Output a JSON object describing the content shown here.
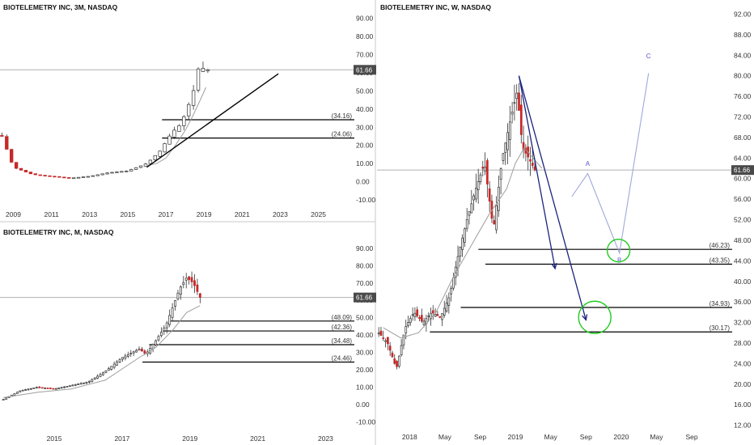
{
  "colors": {
    "up": "#ffffff",
    "down": "#c62828",
    "wick": "#333333",
    "ma": "#9e9e9e",
    "level": "#000000",
    "price_line": "#b0b0b0",
    "arrow": "#1a237e",
    "wave": "#9fa8da",
    "circle": "#22cc22",
    "price_tag": "#4a4a4a"
  },
  "chart_data": [
    {
      "type": "candlestick",
      "title": "BIOTELEMETRY INC, 3M, NASDAQ",
      "current_price": 61.66,
      "current_price_label": "61.66",
      "ylim": [
        -14,
        93
      ],
      "y_ticks": [
        "-10.00",
        "0.00",
        "10.00",
        "20.00",
        "30.00",
        "40.00",
        "50.00",
        "60.00",
        "70.00",
        "80.00",
        "90.00"
      ],
      "x_ticks": [
        {
          "label": "2009",
          "x": 2009
        },
        {
          "label": "2011",
          "x": 2011
        },
        {
          "label": "2013",
          "x": 2013
        },
        {
          "label": "2015",
          "x": 2015
        },
        {
          "label": "2017",
          "x": 2017
        },
        {
          "label": "2019",
          "x": 2019
        },
        {
          "label": "2021",
          "x": 2021
        },
        {
          "label": "2023",
          "x": 2023
        },
        {
          "label": "2025",
          "x": 2025
        }
      ],
      "xlim": [
        2008.3,
        2026.8
      ],
      "levels": [
        {
          "value": 34.16,
          "label": "(34.16)",
          "from": 2016.8
        },
        {
          "value": 24.06,
          "label": "(24.06)",
          "from": 2016.8
        }
      ],
      "trendline": [
        [
          2016.0,
          8
        ],
        [
          2022.9,
          59.5
        ]
      ],
      "ma": [
        [
          2016,
          9
        ],
        [
          2016.5,
          10
        ],
        [
          2017,
          13
        ],
        [
          2017.5,
          20
        ],
        [
          2018,
          28
        ],
        [
          2018.4,
          36
        ],
        [
          2018.8,
          45
        ],
        [
          2019.1,
          52
        ]
      ],
      "anchors": [
        [
          2008.4,
          25
        ],
        [
          2009,
          8
        ],
        [
          2010,
          4
        ],
        [
          2011,
          3
        ],
        [
          2012,
          2
        ],
        [
          2013,
          3
        ],
        [
          2014,
          5
        ],
        [
          2015,
          6
        ],
        [
          2016,
          10
        ],
        [
          2016.7,
          17
        ],
        [
          2017.3,
          27
        ],
        [
          2017.8,
          32
        ],
        [
          2018.4,
          48
        ],
        [
          2018.8,
          67
        ],
        [
          2019,
          61
        ],
        [
          2019.2,
          61.7
        ]
      ]
    },
    {
      "type": "candlestick",
      "title": "BIOTELEMETRY INC, M, NASDAQ",
      "current_price": 61.66,
      "current_price_label": "61.66",
      "ylim": [
        -14,
        96
      ],
      "y_ticks": [
        "-10.00",
        "0.00",
        "10.00",
        "20.00",
        "30.00",
        "40.00",
        "50.00",
        "60.00",
        "70.00",
        "80.00",
        "90.00"
      ],
      "x_ticks": [
        {
          "label": "2015",
          "x": 2015
        },
        {
          "label": "2017",
          "x": 2017
        },
        {
          "label": "2019",
          "x": 2019
        },
        {
          "label": "2021",
          "x": 2021
        },
        {
          "label": "2023",
          "x": 2023
        }
      ],
      "xlim": [
        2013.4,
        2023.8
      ],
      "levels": [
        {
          "value": 48.09,
          "label": "(48.09)",
          "from": 2018.4
        },
        {
          "value": 42.36,
          "label": "(42.36)",
          "from": 2018.2
        },
        {
          "value": 34.48,
          "label": "(34.48)",
          "from": 2017.8
        },
        {
          "value": 24.46,
          "label": "(24.46)",
          "from": 2017.6
        }
      ],
      "ma": [
        [
          2013.5,
          4
        ],
        [
          2014.5,
          7
        ],
        [
          2015.5,
          9
        ],
        [
          2016.5,
          14
        ],
        [
          2017.5,
          27
        ],
        [
          2018,
          33
        ],
        [
          2018.5,
          43
        ],
        [
          2018.9,
          53
        ],
        [
          2019.3,
          57
        ]
      ],
      "anchors": [
        [
          2013.5,
          3
        ],
        [
          2014,
          8
        ],
        [
          2014.5,
          10
        ],
        [
          2015,
          9
        ],
        [
          2015.5,
          11
        ],
        [
          2016,
          13
        ],
        [
          2016.5,
          19
        ],
        [
          2017,
          27
        ],
        [
          2017.5,
          32
        ],
        [
          2017.7,
          29
        ],
        [
          2018,
          37
        ],
        [
          2018.3,
          46
        ],
        [
          2018.7,
          67
        ],
        [
          2018.9,
          73
        ],
        [
          2019.1,
          70
        ],
        [
          2019.3,
          61.7
        ]
      ]
    },
    {
      "type": "candlestick",
      "title": "BIOTELEMETRY INC, W, NASDAQ",
      "current_price": 61.66,
      "current_price_label": "61.66",
      "ylim": [
        11,
        93.8
      ],
      "y_ticks": [
        "12.00",
        "16.00",
        "20.00",
        "24.00",
        "28.00",
        "32.00",
        "36.00",
        "40.00",
        "44.00",
        "48.00",
        "52.00",
        "56.00",
        "60.00",
        "64.00",
        "68.00",
        "72.00",
        "76.00",
        "80.00",
        "84.00",
        "88.00",
        "92.00"
      ],
      "x_ticks": [
        {
          "label": "2018",
          "x": 0.0
        },
        {
          "label": "May",
          "x": 4.0
        },
        {
          "label": "Sep",
          "x": 8.0
        },
        {
          "label": "2019",
          "x": 12.0
        },
        {
          "label": "May",
          "x": 16.0
        },
        {
          "label": "Sep",
          "x": 20.0
        },
        {
          "label": "2020",
          "x": 24.0
        },
        {
          "label": "May",
          "x": 28.0
        },
        {
          "label": "Sep",
          "x": 32.0
        }
      ],
      "xlim": [
        -3.7,
        36.4
      ],
      "levels": [
        {
          "value": 46.23,
          "label": "(46.23)",
          "from": 7.8
        },
        {
          "value": 43.35,
          "label": "(43.35)",
          "from": 8.6
        },
        {
          "value": 34.93,
          "label": "(34.93)",
          "from": 5.8
        },
        {
          "value": 30.17,
          "label": "(30.17)",
          "from": 2.3
        }
      ],
      "wave_labels": [
        {
          "label": "A",
          "x": 20.2,
          "y": 62.5
        },
        {
          "label": "B",
          "x": 23.8,
          "y": 43.7
        },
        {
          "label": "C",
          "x": 27.1,
          "y": 83.4
        }
      ],
      "wave_path": [
        [
          18.4,
          56.5
        ],
        [
          20.2,
          61.0
        ],
        [
          23.8,
          45.5
        ],
        [
          27.1,
          80.5
        ]
      ],
      "arrows": [
        [
          [
            12.4,
            80.0
          ],
          [
            16.5,
            42.5
          ]
        ],
        [
          [
            12.4,
            80.0
          ],
          [
            20.0,
            32.5
          ]
        ]
      ],
      "circles": [
        {
          "x": 23.7,
          "y": 46.0,
          "r": 14
        },
        {
          "x": 21.0,
          "y": 33.0,
          "r": 20
        }
      ],
      "ma": [
        [
          -3,
          31
        ],
        [
          -1,
          29
        ],
        [
          1,
          30
        ],
        [
          3,
          34
        ],
        [
          5,
          41
        ],
        [
          7,
          47
        ],
        [
          9,
          53
        ],
        [
          11,
          58
        ],
        [
          12,
          63
        ],
        [
          13,
          66
        ],
        [
          14,
          64
        ],
        [
          15,
          62
        ]
      ],
      "anchors": [
        [
          -3.5,
          30
        ],
        [
          -2.5,
          28
        ],
        [
          -1.5,
          23
        ],
        [
          -0.5,
          31
        ],
        [
          0.5,
          34
        ],
        [
          1.5,
          32
        ],
        [
          2.5,
          34
        ],
        [
          3.5,
          33
        ],
        [
          4.5,
          37
        ],
        [
          5.5,
          45
        ],
        [
          6.5,
          52
        ],
        [
          7.5,
          58
        ],
        [
          8.5,
          63
        ],
        [
          9.5,
          50
        ],
        [
          10.5,
          64
        ],
        [
          11.5,
          72
        ],
        [
          12.2,
          77
        ],
        [
          12.8,
          66
        ],
        [
          13.5,
          64
        ],
        [
          14.2,
          61.7
        ]
      ]
    }
  ]
}
